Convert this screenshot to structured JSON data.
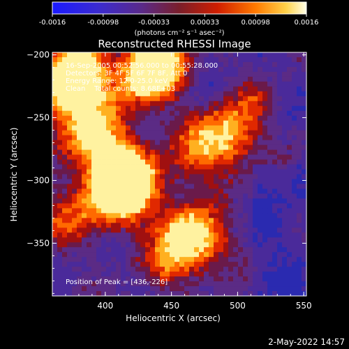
{
  "chart_data": {
    "type": "heatmap",
    "title": "Reconstructed RHESSI Image",
    "xlabel": "Heliocentric X (arcsec)",
    "ylabel": "Heliocentric Y (arcsec)",
    "xlim": [
      360,
      552
    ],
    "ylim": [
      -392,
      -198
    ],
    "x_ticks": [
      "400",
      "450",
      "500",
      "550"
    ],
    "y_ticks": [
      "-200",
      "-250",
      "-300",
      "-350"
    ],
    "colorbar": {
      "min": -0.0016,
      "max": 0.0016,
      "tick_labels": [
        "-0.0016",
        "-0.00098",
        "-0.00033",
        "0.00033",
        "0.00098",
        "0.0016"
      ],
      "units": "(photons cm⁻² s⁻¹ asec⁻²)"
    },
    "annotations": {
      "time": "16-Sep-2005 00:52:56.000 to 00:55:28.000",
      "detectors": "Detectors: 3F 4F 5F 6F 7F 8F, Att 0",
      "energy": "Energy Range: 12.0-25.0 keV",
      "method": "Clean    Total counts: 8.68E+03",
      "peak": "Position of Peak = [436,-226]"
    },
    "peak": [
      436,
      -226
    ]
  },
  "footer": {
    "timestamp": "2-May-2022 14:57"
  }
}
